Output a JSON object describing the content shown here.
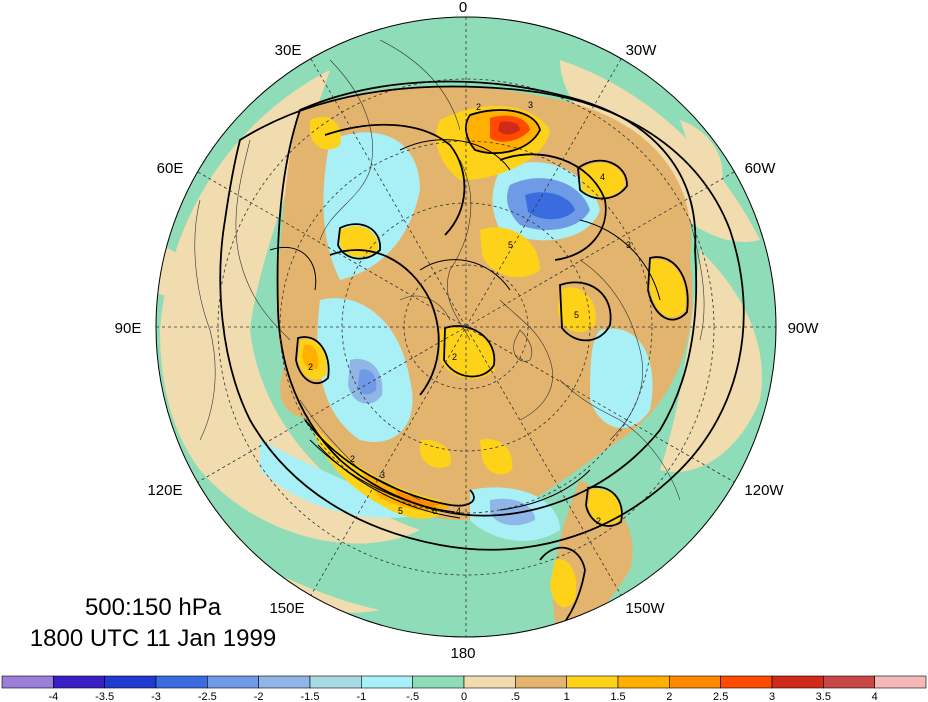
{
  "caption": {
    "line1": "500:150 hPa",
    "line2": "1800 UTC 11 Jan 1999"
  },
  "longitude_labels": [
    "0",
    "30W",
    "60W",
    "90W",
    "120W",
    "150W",
    "180",
    "150E",
    "120E",
    "90E",
    "60E",
    "30E"
  ],
  "colorbar": {
    "ticks": [
      "-4",
      "-3.5",
      "-3",
      "-2.5",
      "-2",
      "-1.5",
      "-1",
      "-.5",
      "0",
      ".5",
      "1",
      "1.5",
      "2",
      "2.5",
      "3",
      "3.5",
      "4"
    ],
    "colors": [
      "#9b7fd8",
      "#3a1fc4",
      "#1e3ad0",
      "#3a6ce0",
      "#6f9be6",
      "#8fb6e6",
      "#a8dbe3",
      "#a8f0f5",
      "#8fdcb8",
      "#f0dcae",
      "#e2b46e",
      "#ffd21a",
      "#ffb000",
      "#ff8a00",
      "#ff4a00",
      "#d02a1a",
      "#c84848",
      "#f5b8b8"
    ]
  },
  "contour_labels": [
    "2",
    "3",
    "4",
    "5",
    "2",
    "2",
    "3",
    "4",
    "5",
    "6",
    "2",
    "5",
    "3",
    "2",
    "3",
    "4",
    "5",
    "6",
    "5",
    "2"
  ]
}
